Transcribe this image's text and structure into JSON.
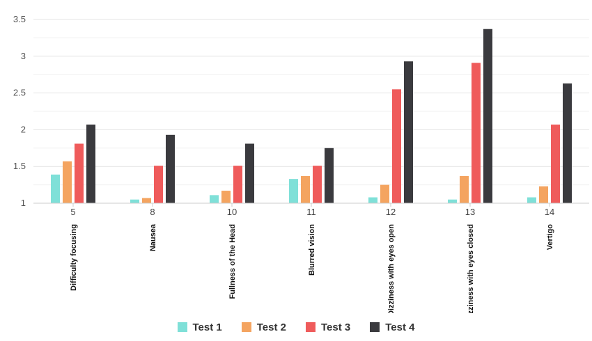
{
  "chart_data": {
    "type": "bar",
    "categories": [
      "5",
      "8",
      "10",
      "11",
      "12",
      "13",
      "14"
    ],
    "category_names": [
      "Difficulty focusing",
      "Nausea",
      "Fullness of the Head",
      "Blurred vision",
      "Dizziness with eyes open",
      "Dizziness with eyes closed",
      "Vertigo"
    ],
    "series": [
      {
        "name": "Test 1",
        "color": "#7fe0d8",
        "values": [
          1.39,
          1.05,
          1.11,
          1.33,
          1.08,
          1.05,
          1.08
        ]
      },
      {
        "name": "Test 2",
        "color": "#f4a460",
        "values": [
          1.57,
          1.07,
          1.17,
          1.37,
          1.25,
          1.37,
          1.23
        ]
      },
      {
        "name": "Test 3",
        "color": "#ef5b5b",
        "values": [
          1.81,
          1.51,
          1.51,
          1.51,
          2.55,
          2.91,
          2.07
        ]
      },
      {
        "name": "Test 4",
        "color": "#3a3a3e",
        "values": [
          2.07,
          1.93,
          1.81,
          1.75,
          2.93,
          3.37,
          2.63
        ]
      }
    ],
    "yticks": [
      "1",
      "1.5",
      "2",
      "2.5",
      "3",
      "3.5"
    ],
    "ylim": [
      1,
      3.5
    ],
    "grid": true,
    "legend": "bottom-center"
  }
}
